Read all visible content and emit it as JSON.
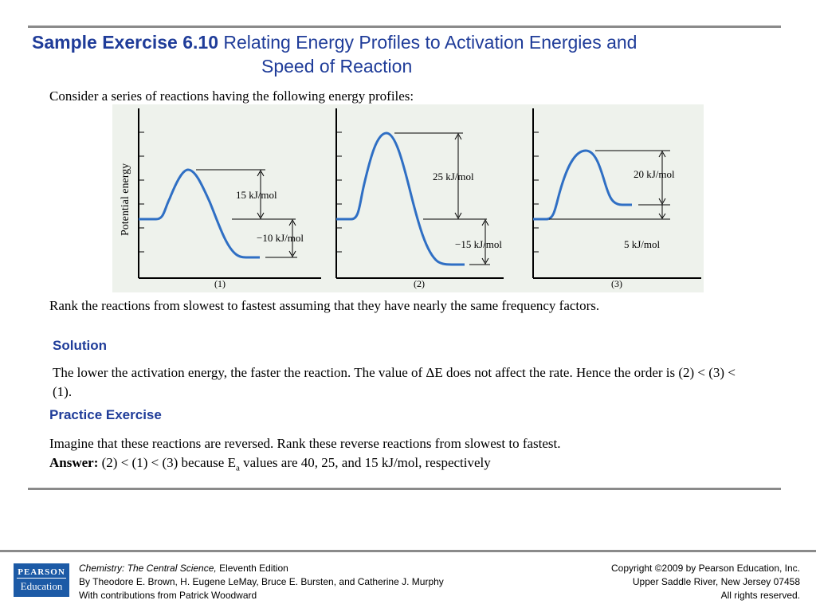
{
  "title": {
    "lead": "Sample Exercise 6.10",
    "rest_line1": " Relating Energy Profiles to Activation Energies and",
    "rest_line2": "Speed of Reaction"
  },
  "intro": "Consider a series of reactions having the following energy profiles:",
  "figure": {
    "y_axis_label": "Potential energy",
    "profiles": [
      {
        "label": "(1)",
        "activation": "15 kJ/mol",
        "delta": "−10 kJ/mol"
      },
      {
        "label": "(2)",
        "activation": "25 kJ/mol",
        "delta": "−15 kJ/mol"
      },
      {
        "label": "(3)",
        "activation": "20  kJ/mol",
        "delta": "5 kJ/mol"
      }
    ]
  },
  "question": "Rank the reactions from slowest to fastest assuming that they have nearly the same frequency factors.",
  "solution": {
    "heading": "Solution",
    "text": "The lower the activation energy, the faster the reaction. The value of ΔE does not affect the rate. Hence the order is (2) < (3) < (1)."
  },
  "practice": {
    "heading": "Practice Exercise",
    "text": "Imagine that these reactions are reversed. Rank these reverse reactions from slowest to fastest.",
    "answer_label": "Answer:",
    "answer_pre": " (2) < (1) < (3) because E",
    "answer_sub": "a",
    "answer_post": " values are 40, 25, and 15 kJ/mol, respectively"
  },
  "footer": {
    "logo_top": "PEARSON",
    "logo_bottom": "Education",
    "book_title": "Chemistry: The Central Science,",
    "edition": " Eleventh Edition",
    "authors": "By Theodore E. Brown, H. Eugene LeMay, Bruce E. Bursten, and Catherine J. Murphy",
    "contrib": "With contributions from Patrick Woodward",
    "copyright": "Copyright ©2009 by Pearson Education, Inc.",
    "address": "Upper Saddle River, New Jersey 07458",
    "rights": "All rights reserved."
  },
  "colors": {
    "title_blue": "#1f3c99",
    "curve_blue": "#2f6fc4",
    "figure_bg": "#eef2ec",
    "rule_gray": "#8a8a8a",
    "logo_blue": "#1c5aa6"
  }
}
